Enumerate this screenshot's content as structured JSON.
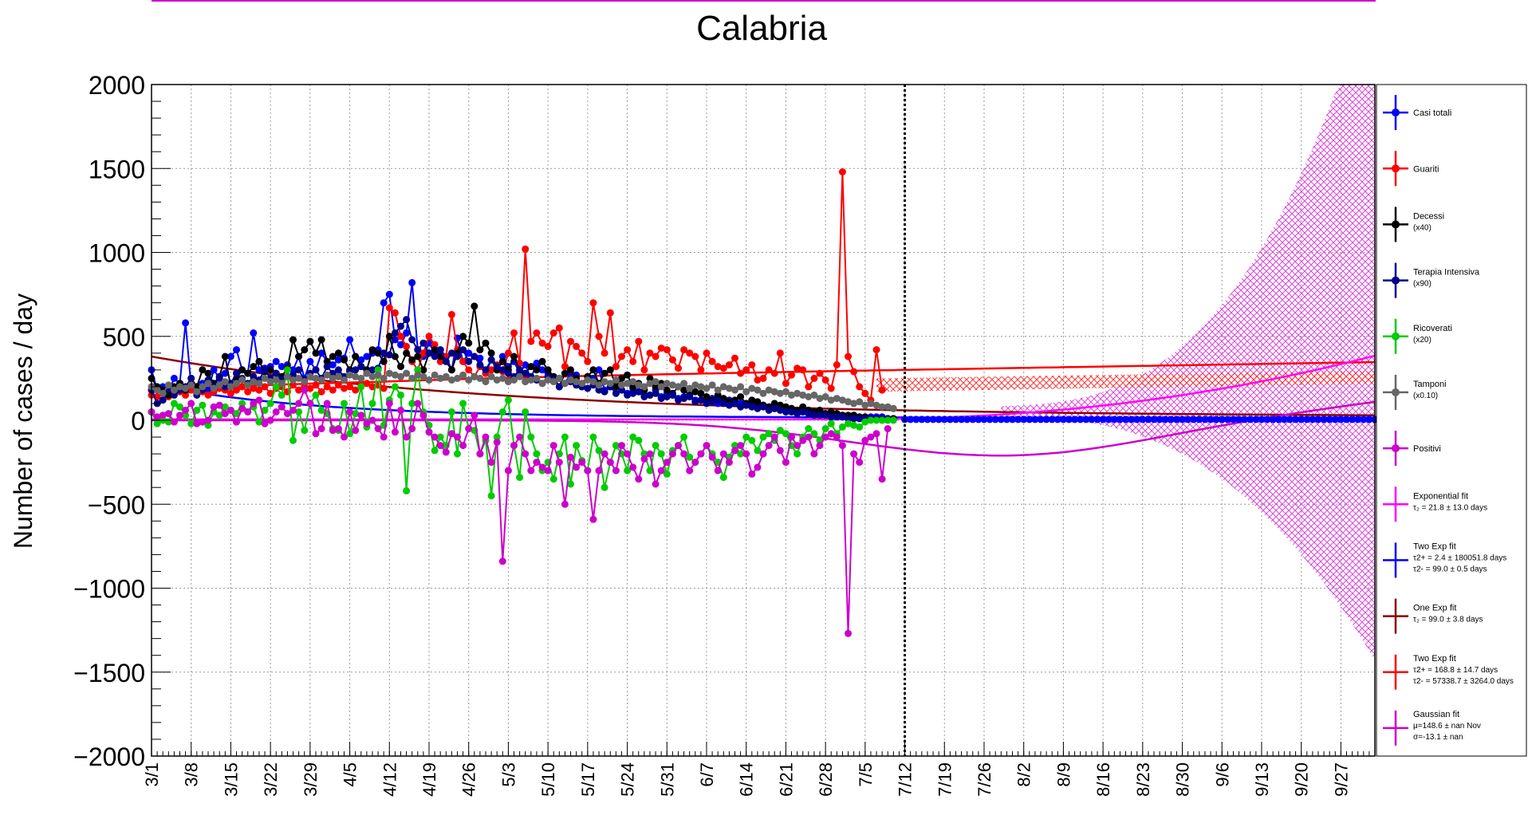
{
  "chart_data": {
    "type": "line",
    "title": "Calabria",
    "ylabel": "Number of cases / day",
    "xlabel": "",
    "ylim": [
      -2000,
      2000
    ],
    "yticks": [
      -2000,
      -1500,
      -1000,
      -500,
      0,
      500,
      1000,
      1500,
      2000
    ],
    "ytick_labels": [
      "−2000",
      "−1500",
      "−1000",
      "−500",
      "0",
      "500",
      "1000",
      "1500",
      "2000"
    ],
    "xlim_days": [
      0,
      216
    ],
    "x_tick_labels": [
      "3/1",
      "3/8",
      "3/15",
      "3/22",
      "3/29",
      "4/5",
      "4/12",
      "4/19",
      "4/26",
      "5/3",
      "5/10",
      "5/17",
      "5/24",
      "5/31",
      "6/7",
      "6/14",
      "6/21",
      "6/28",
      "7/5",
      "7/12",
      "7/19",
      "7/26",
      "8/2",
      "8/9",
      "8/16",
      "8/23",
      "8/30",
      "9/6",
      "9/13",
      "9/20",
      "9/27"
    ],
    "grid": true,
    "legend_position": "right",
    "data_end_marker_date": "7/12",
    "series": [
      {
        "name": "Casi totali",
        "color": "#0000ff",
        "x_start": 0,
        "points": [
          300,
          180,
          200,
          170,
          250,
          220,
          580,
          200,
          170,
          220,
          180,
          300,
          250,
          280,
          380,
          420,
          300,
          280,
          520,
          300,
          310,
          320,
          350,
          320,
          330,
          300,
          380,
          250,
          350,
          300,
          400,
          350,
          330,
          360,
          370,
          480,
          380,
          360,
          380,
          400,
          420,
          700,
          750,
          480,
          450,
          520,
          820,
          420,
          380,
          460,
          400,
          420,
          380,
          300,
          490,
          350,
          400,
          380,
          370,
          280,
          360,
          300,
          380,
          320,
          350,
          280,
          330,
          250,
          340,
          300,
          280,
          260,
          250,
          220,
          280,
          270,
          200,
          260,
          250,
          300,
          180,
          200,
          220,
          180,
          160,
          190,
          170,
          150,
          150,
          180,
          140,
          160,
          150,
          130,
          140,
          150,
          120,
          120,
          110,
          130,
          100,
          110,
          120,
          100,
          100,
          90,
          100,
          80,
          90,
          80,
          70,
          80,
          60,
          70,
          60,
          50,
          60,
          50,
          40,
          40,
          30,
          40,
          30,
          20,
          30,
          20,
          20,
          20,
          20,
          20,
          10,
          10
        ]
      },
      {
        "name": "Guariti",
        "color": "#ff0000",
        "x_start": 0,
        "points": [
          150,
          140,
          160,
          140,
          160,
          170,
          150,
          180,
          160,
          170,
          150,
          170,
          190,
          180,
          160,
          180,
          200,
          170,
          190,
          180,
          200,
          160,
          190,
          200,
          170,
          210,
          180,
          200,
          190,
          210,
          170,
          200,
          180,
          210,
          190,
          200,
          180,
          210,
          220,
          200,
          210,
          190,
          670,
          640,
          500,
          440,
          350,
          300,
          400,
          500,
          450,
          350,
          380,
          630,
          420,
          350,
          300,
          260,
          320,
          280,
          300,
          330,
          290,
          400,
          520,
          340,
          1020,
          470,
          520,
          460,
          440,
          520,
          550,
          320,
          470,
          440,
          400,
          350,
          700,
          500,
          400,
          640,
          320,
          380,
          420,
          350,
          470,
          300,
          400,
          380,
          430,
          420,
          360,
          310,
          420,
          400,
          380,
          300,
          400,
          350,
          320,
          310,
          330,
          370,
          280,
          300,
          330,
          240,
          250,
          300,
          280,
          400,
          220,
          270,
          310,
          300,
          200,
          250,
          280,
          240,
          190,
          330,
          1480,
          380,
          290,
          200,
          160,
          120,
          420,
          180
        ]
      },
      {
        "name": "Decessi",
        "sublabel": "(x40)",
        "color": "#000000",
        "x_start": 0,
        "points": [
          250,
          200,
          180,
          150,
          200,
          220,
          180,
          250,
          200,
          300,
          280,
          220,
          260,
          380,
          200,
          250,
          300,
          280,
          320,
          350,
          290,
          300,
          280,
          260,
          310,
          480,
          380,
          420,
          470,
          400,
          480,
          350,
          380,
          400,
          360,
          300,
          380,
          320,
          300,
          420,
          400,
          350,
          500,
          380,
          320,
          400,
          360,
          380,
          300,
          400,
          420,
          380,
          350,
          300,
          400,
          500,
          460,
          680,
          420,
          460,
          400,
          300,
          350,
          300,
          380,
          300,
          280,
          320,
          300,
          350,
          300,
          260,
          200,
          280,
          300,
          250,
          220,
          260,
          300,
          220,
          280,
          300,
          200,
          250,
          270,
          200,
          220,
          180,
          250,
          200,
          220,
          180,
          160,
          200,
          180,
          150,
          170,
          160,
          140,
          120,
          150,
          130,
          110,
          120,
          140,
          100,
          120,
          110,
          90,
          80,
          100,
          90,
          80,
          70,
          60,
          80,
          60,
          50,
          60,
          40,
          50,
          40,
          30,
          30,
          30,
          20,
          20,
          10,
          10,
          10,
          10,
          10
        ]
      },
      {
        "name": "Terapia Intensiva",
        "sublabel": "(x90)",
        "color": "#00008b",
        "x_start": 0,
        "points": [
          180,
          100,
          120,
          200,
          150,
          180,
          200,
          250,
          150,
          180,
          240,
          200,
          260,
          200,
          220,
          280,
          250,
          220,
          260,
          240,
          300,
          250,
          280,
          240,
          260,
          270,
          300,
          240,
          280,
          300,
          250,
          320,
          280,
          300,
          260,
          290,
          300,
          320,
          280,
          300,
          310,
          400,
          390,
          520,
          560,
          600,
          480,
          420,
          460,
          400,
          380,
          420,
          350,
          400,
          380,
          420,
          350,
          380,
          330,
          300,
          360,
          320,
          300,
          280,
          260,
          300,
          280,
          260,
          240,
          220,
          260,
          240,
          200,
          220,
          230,
          210,
          200,
          190,
          210,
          180,
          170,
          200,
          160,
          180,
          150,
          160,
          170,
          140,
          150,
          160,
          130,
          140,
          150,
          120,
          130,
          140,
          110,
          120,
          100,
          110,
          120,
          100,
          90,
          100,
          80,
          90,
          80,
          70,
          80,
          60,
          70,
          60,
          50,
          50,
          40,
          50,
          40,
          30,
          30,
          30,
          20,
          20,
          20,
          10,
          10,
          10,
          10,
          10,
          10,
          10,
          10
        ]
      },
      {
        "name": "Ricoverati",
        "sublabel": "(x20)",
        "color": "#00cc00",
        "x_start": 0,
        "points": [
          50,
          -20,
          0,
          -10,
          100,
          80,
          30,
          -20,
          60,
          90,
          -30,
          50,
          30,
          80,
          60,
          40,
          100,
          50,
          80,
          -10,
          60,
          100,
          200,
          150,
          300,
          -120,
          50,
          -60,
          100,
          150,
          60,
          40,
          -50,
          -60,
          100,
          -80,
          40,
          200,
          -40,
          100,
          300,
          -30,
          120,
          200,
          150,
          -420,
          100,
          300,
          50,
          -30,
          -180,
          -100,
          -150,
          50,
          -200,
          100,
          -50,
          -60,
          -200,
          -120,
          -450,
          -100,
          50,
          120,
          -150,
          -340,
          50,
          -100,
          -200,
          -300,
          -250,
          -350,
          -200,
          -100,
          -380,
          -150,
          -240,
          -300,
          -100,
          -180,
          -400,
          -250,
          -150,
          -200,
          -300,
          -100,
          -120,
          -200,
          -300,
          -150,
          -200,
          -320,
          -180,
          -150,
          -100,
          -220,
          -250,
          -200,
          -150,
          -200,
          -250,
          -340,
          -220,
          -150,
          -200,
          -100,
          -120,
          -180,
          -100,
          -80,
          -120,
          -60,
          -80,
          -150,
          -200,
          -100,
          -50,
          -80,
          -120,
          -50,
          -20,
          -80,
          -40,
          -20,
          -30,
          -40,
          -10,
          0,
          0,
          0,
          0,
          0
        ]
      },
      {
        "name": "Tamponi",
        "sublabel": "(x0.10)",
        "color": "#666666",
        "x_start": 0,
        "points": [
          200,
          180,
          160,
          210,
          180,
          200,
          190,
          210,
          170,
          200,
          220,
          190,
          210,
          230,
          200,
          220,
          240,
          210,
          230,
          220,
          250,
          230,
          240,
          220,
          260,
          240,
          250,
          230,
          260,
          250,
          240,
          270,
          250,
          260,
          240,
          270,
          260,
          250,
          280,
          260,
          270,
          250,
          280,
          270,
          260,
          280,
          250,
          270,
          260,
          240,
          270,
          250,
          260,
          240,
          250,
          270,
          240,
          260,
          250,
          230,
          260,
          240,
          250,
          230,
          240,
          260,
          230,
          240,
          250,
          220,
          240,
          230,
          250,
          220,
          240,
          230,
          220,
          240,
          230,
          210,
          230,
          220,
          240,
          210,
          220,
          230,
          210,
          200,
          220,
          230,
          200,
          220,
          210,
          200,
          220,
          190,
          210,
          200,
          190,
          210,
          180,
          200,
          190,
          180,
          200,
          170,
          190,
          180,
          160,
          180,
          170,
          160,
          170,
          150,
          160,
          150,
          140,
          150,
          130,
          140,
          120,
          130,
          120,
          110,
          100,
          110,
          90,
          100,
          90,
          80,
          80,
          70
        ]
      },
      {
        "name": "Positivi",
        "color": "#cc00cc",
        "x_start": 0,
        "points": [
          50,
          20,
          30,
          40,
          -10,
          30,
          60,
          100,
          -20,
          -10,
          0,
          80,
          90,
          40,
          60,
          -10,
          70,
          50,
          100,
          120,
          -20,
          0,
          50,
          80,
          40,
          60,
          100,
          180,
          100,
          -80,
          -50,
          100,
          -60,
          -50,
          -100,
          50,
          -60,
          30,
          -20,
          0,
          -50,
          -100,
          100,
          -70,
          60,
          -100,
          -50,
          100,
          30,
          -70,
          -100,
          -150,
          -190,
          -80,
          -100,
          -150,
          -50,
          30,
          -200,
          -100,
          -250,
          -130,
          -840,
          -300,
          -150,
          -100,
          -200,
          -300,
          -250,
          -280,
          -300,
          -150,
          -250,
          -500,
          -220,
          -280,
          -250,
          -300,
          -590,
          -300,
          -200,
          -250,
          -300,
          -150,
          -200,
          -280,
          -350,
          -230,
          -200,
          -380,
          -300,
          -250,
          -200,
          -150,
          -200,
          -300,
          -250,
          -200,
          -150,
          -220,
          -300,
          -200,
          -250,
          -180,
          -150,
          -200,
          -320,
          -280,
          -200,
          -150,
          -100,
          -180,
          -250,
          -100,
          -150,
          -120,
          -100,
          -200,
          -150,
          -100,
          -80,
          -100,
          -150,
          -1270,
          -200,
          -250,
          -120,
          -100,
          -80,
          -350,
          -50
        ]
      }
    ],
    "fits": [
      {
        "name": "Exponential fit",
        "detail": "τ₂ = 21.8  ± 13.0 days",
        "color": "#ff00ff"
      },
      {
        "name": "Two Exp fit",
        "detail": "τ2+ = 2.4 ± 180051.8 days",
        "detail2": "τ2- = 99.0 ± 0.5 days",
        "color": "#0000ff"
      },
      {
        "name": "One Exp fit",
        "detail": "τ₂ = 99.0  ± 3.8 days",
        "color": "#8b0000"
      },
      {
        "name": "Two Exp fit",
        "detail": "τ2+ = 168.8 ± 14.7 days",
        "detail2": "τ2- = 57338.7 ± 3264.0 days",
        "color": "#ff0000"
      },
      {
        "name": "Gaussian fit",
        "detail": "μ=148.6 ± nan Nov",
        "detail2": "σ=-13.1 ± nan",
        "color": "#cc00cc"
      }
    ]
  }
}
